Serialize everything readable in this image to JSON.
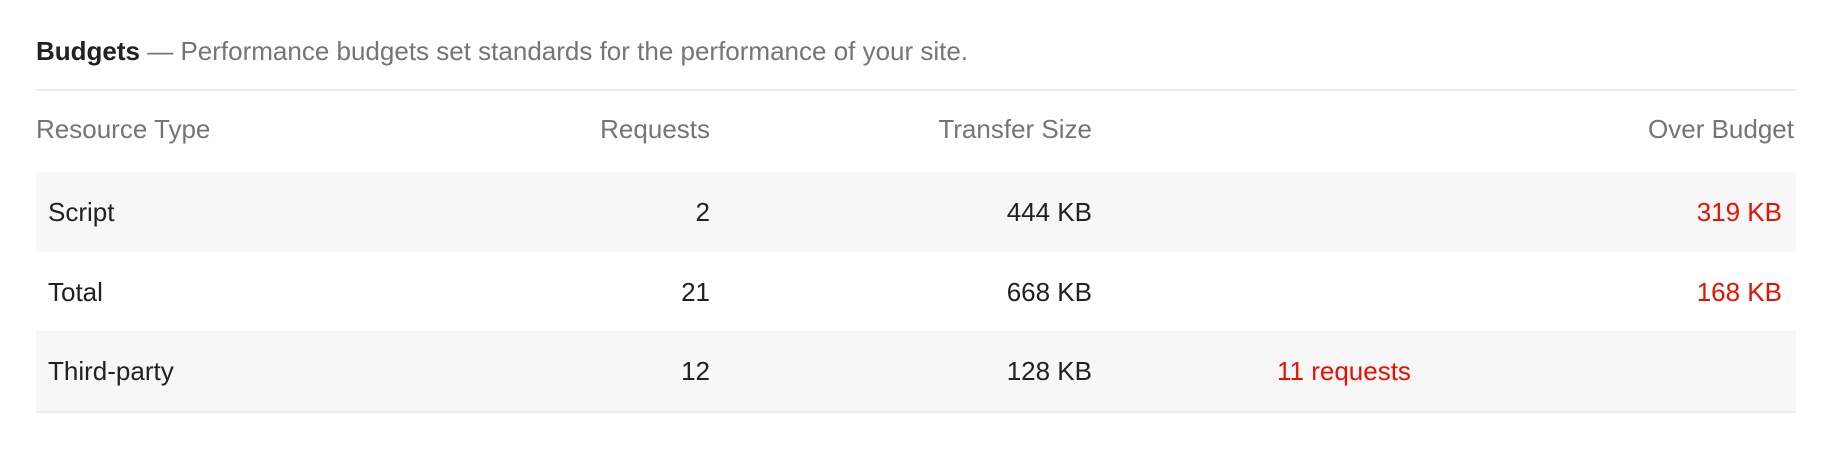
{
  "title": {
    "bold": "Budgets",
    "separator": " — ",
    "description": "Performance budgets set standards for the performance of your site."
  },
  "table": {
    "headers": {
      "resource_type": "Resource Type",
      "requests": "Requests",
      "transfer_size": "Transfer Size",
      "over_budget": "Over Budget"
    },
    "rows": [
      {
        "resource_type": "Script",
        "requests": "2",
        "transfer_size": "444 KB",
        "requests_over": "",
        "size_over": "319 KB"
      },
      {
        "resource_type": "Total",
        "requests": "21",
        "transfer_size": "668 KB",
        "requests_over": "",
        "size_over": "168 KB"
      },
      {
        "resource_type": "Third-party",
        "requests": "12",
        "transfer_size": "128 KB",
        "requests_over": "11 requests",
        "size_over": ""
      }
    ]
  },
  "colors": {
    "over_budget": "#eb0f00",
    "row_alt": "#f7f7f7"
  }
}
